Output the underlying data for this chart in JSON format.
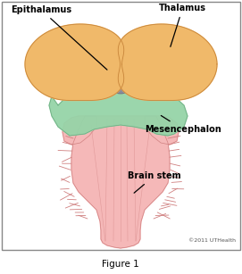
{
  "title": "Figure 1",
  "copyright": "©2011 UTHealth",
  "labels": {
    "epithalamus": "Epithalamus",
    "thalamus": "Thalamus",
    "mesencephalon": "Mesencephalon",
    "brain_stem": "Brain stem"
  },
  "colors": {
    "background": "#ffffff",
    "border": "#888888",
    "thalamus_fill": "#f0b96a",
    "thalamus_edge": "#c8853a",
    "epithalamus_fill": "#8a8a9a",
    "epithalamus_edge": "#666678",
    "mesencephalon_fill": "#96d4a8",
    "mesencephalon_edge": "#6aaa80",
    "brainstem_fill": "#f5b8b8",
    "brainstem_edge": "#d08080",
    "label_color": "#000000",
    "connector_color": "#000000"
  },
  "figsize": [
    2.71,
    3.07
  ],
  "dpi": 100
}
